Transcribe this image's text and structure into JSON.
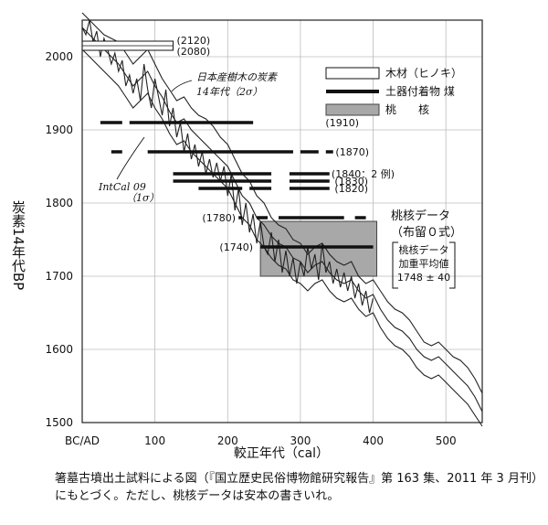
{
  "chart_data": {
    "type": "line",
    "ylabel": "炭素14年代BP",
    "xlabel": "較正年代（cal）",
    "xlim": [
      0,
      550
    ],
    "ylim": [
      1500,
      2050
    ],
    "x_ticks": [
      {
        "value": 0,
        "label": "BC/AD"
      },
      {
        "value": 100,
        "label": "100"
      },
      {
        "value": 200,
        "label": "200"
      },
      {
        "value": 300,
        "label": "300"
      },
      {
        "value": 400,
        "label": "400"
      },
      {
        "value": 500,
        "label": "500"
      }
    ],
    "y_ticks": [
      {
        "value": 1500,
        "label": "1500"
      },
      {
        "value": 1600,
        "label": "1600"
      },
      {
        "value": 1700,
        "label": "1700"
      },
      {
        "value": 1800,
        "label": "1800"
      },
      {
        "value": 1900,
        "label": "1900"
      },
      {
        "value": 2000,
        "label": "2000"
      }
    ],
    "grid": true,
    "calibration_curve": {
      "upper": [
        [
          0,
          2060
        ],
        [
          10,
          2050
        ],
        [
          20,
          2040
        ],
        [
          30,
          2030
        ],
        [
          40,
          2025
        ],
        [
          50,
          2020
        ],
        [
          60,
          2005
        ],
        [
          70,
          1990
        ],
        [
          80,
          2000
        ],
        [
          90,
          2010
        ],
        [
          100,
          1990
        ],
        [
          110,
          1970
        ],
        [
          120,
          1955
        ],
        [
          130,
          1940
        ],
        [
          140,
          1945
        ],
        [
          150,
          1930
        ],
        [
          160,
          1920
        ],
        [
          170,
          1915
        ],
        [
          180,
          1905
        ],
        [
          190,
          1890
        ],
        [
          200,
          1880
        ],
        [
          210,
          1860
        ],
        [
          220,
          1840
        ],
        [
          230,
          1830
        ],
        [
          240,
          1810
        ],
        [
          250,
          1800
        ],
        [
          260,
          1780
        ],
        [
          270,
          1770
        ],
        [
          280,
          1765
        ],
        [
          290,
          1750
        ],
        [
          300,
          1745
        ],
        [
          310,
          1730
        ],
        [
          320,
          1740
        ],
        [
          330,
          1745
        ],
        [
          340,
          1730
        ],
        [
          350,
          1720
        ],
        [
          360,
          1715
        ],
        [
          370,
          1720
        ],
        [
          380,
          1700
        ],
        [
          390,
          1690
        ],
        [
          400,
          1695
        ],
        [
          410,
          1680
        ],
        [
          420,
          1665
        ],
        [
          430,
          1655
        ],
        [
          440,
          1650
        ],
        [
          450,
          1640
        ],
        [
          460,
          1625
        ],
        [
          470,
          1610
        ],
        [
          480,
          1605
        ],
        [
          490,
          1610
        ],
        [
          500,
          1600
        ],
        [
          510,
          1590
        ],
        [
          520,
          1585
        ],
        [
          530,
          1575
        ],
        [
          540,
          1560
        ],
        [
          550,
          1540
        ]
      ],
      "central": [
        [
          0,
          2040
        ],
        [
          10,
          2030
        ],
        [
          20,
          2020
        ],
        [
          30,
          2010
        ],
        [
          40,
          2000
        ],
        [
          50,
          1990
        ],
        [
          60,
          1975
        ],
        [
          70,
          1960
        ],
        [
          80,
          1970
        ],
        [
          90,
          1980
        ],
        [
          100,
          1960
        ],
        [
          110,
          1945
        ],
        [
          120,
          1925
        ],
        [
          130,
          1910
        ],
        [
          140,
          1915
        ],
        [
          150,
          1900
        ],
        [
          160,
          1890
        ],
        [
          170,
          1880
        ],
        [
          180,
          1870
        ],
        [
          190,
          1860
        ],
        [
          200,
          1850
        ],
        [
          210,
          1830
        ],
        [
          220,
          1810
        ],
        [
          230,
          1800
        ],
        [
          240,
          1780
        ],
        [
          250,
          1770
        ],
        [
          260,
          1755
        ],
        [
          270,
          1745
        ],
        [
          280,
          1740
        ],
        [
          290,
          1725
        ],
        [
          300,
          1720
        ],
        [
          310,
          1705
        ],
        [
          320,
          1715
        ],
        [
          330,
          1720
        ],
        [
          340,
          1705
        ],
        [
          350,
          1695
        ],
        [
          360,
          1690
        ],
        [
          370,
          1695
        ],
        [
          380,
          1680
        ],
        [
          390,
          1670
        ],
        [
          400,
          1675
        ],
        [
          410,
          1655
        ],
        [
          420,
          1640
        ],
        [
          430,
          1630
        ],
        [
          440,
          1625
        ],
        [
          450,
          1615
        ],
        [
          460,
          1600
        ],
        [
          470,
          1590
        ],
        [
          480,
          1585
        ],
        [
          490,
          1590
        ],
        [
          500,
          1580
        ],
        [
          510,
          1570
        ],
        [
          520,
          1560
        ],
        [
          530,
          1550
        ],
        [
          540,
          1535
        ],
        [
          550,
          1515
        ]
      ],
      "lower": [
        [
          0,
          2010
        ],
        [
          10,
          2000
        ],
        [
          20,
          1990
        ],
        [
          30,
          1980
        ],
        [
          40,
          1970
        ],
        [
          50,
          1960
        ],
        [
          60,
          1945
        ],
        [
          70,
          1930
        ],
        [
          80,
          1940
        ],
        [
          90,
          1950
        ],
        [
          100,
          1930
        ],
        [
          110,
          1915
        ],
        [
          120,
          1895
        ],
        [
          130,
          1880
        ],
        [
          140,
          1885
        ],
        [
          150,
          1870
        ],
        [
          160,
          1860
        ],
        [
          170,
          1850
        ],
        [
          180,
          1840
        ],
        [
          190,
          1830
        ],
        [
          200,
          1820
        ],
        [
          210,
          1800
        ],
        [
          220,
          1780
        ],
        [
          230,
          1770
        ],
        [
          240,
          1750
        ],
        [
          250,
          1740
        ],
        [
          260,
          1725
        ],
        [
          270,
          1715
        ],
        [
          280,
          1710
        ],
        [
          290,
          1695
        ],
        [
          300,
          1690
        ],
        [
          310,
          1680
        ],
        [
          320,
          1690
        ],
        [
          330,
          1695
        ],
        [
          340,
          1680
        ],
        [
          350,
          1670
        ],
        [
          360,
          1665
        ],
        [
          370,
          1670
        ],
        [
          380,
          1655
        ],
        [
          390,
          1645
        ],
        [
          400,
          1650
        ],
        [
          410,
          1630
        ],
        [
          420,
          1615
        ],
        [
          430,
          1605
        ],
        [
          440,
          1600
        ],
        [
          450,
          1590
        ],
        [
          460,
          1575
        ],
        [
          470,
          1565
        ],
        [
          480,
          1560
        ],
        [
          490,
          1565
        ],
        [
          500,
          1555
        ],
        [
          510,
          1545
        ],
        [
          520,
          1535
        ],
        [
          530,
          1525
        ],
        [
          540,
          1510
        ],
        [
          550,
          1495
        ]
      ]
    },
    "jagged_curve": [
      [
        0,
        2040
      ],
      [
        5,
        2030
      ],
      [
        10,
        2050
      ],
      [
        15,
        2020
      ],
      [
        20,
        2035
      ],
      [
        25,
        2000
      ],
      [
        30,
        2025
      ],
      [
        35,
        2010
      ],
      [
        40,
        1990
      ],
      [
        45,
        2005
      ],
      [
        50,
        1980
      ],
      [
        55,
        1995
      ],
      [
        60,
        1960
      ],
      [
        65,
        1975
      ],
      [
        70,
        1950
      ],
      [
        75,
        1970
      ],
      [
        80,
        1940
      ],
      [
        85,
        1990
      ],
      [
        90,
        1955
      ],
      [
        95,
        1930
      ],
      [
        100,
        1970
      ],
      [
        105,
        1945
      ],
      [
        110,
        1920
      ],
      [
        115,
        1955
      ],
      [
        120,
        1905
      ],
      [
        125,
        1930
      ],
      [
        130,
        1890
      ],
      [
        135,
        1910
      ],
      [
        140,
        1870
      ],
      [
        145,
        1895
      ],
      [
        150,
        1860
      ],
      [
        155,
        1880
      ],
      [
        160,
        1850
      ],
      [
        165,
        1870
      ],
      [
        170,
        1840
      ],
      [
        175,
        1860
      ],
      [
        180,
        1835
      ],
      [
        185,
        1855
      ],
      [
        190,
        1830
      ],
      [
        195,
        1850
      ],
      [
        200,
        1810
      ],
      [
        205,
        1840
      ],
      [
        210,
        1790
      ],
      [
        215,
        1820
      ],
      [
        220,
        1770
      ],
      [
        225,
        1800
      ],
      [
        230,
        1760
      ],
      [
        235,
        1785
      ],
      [
        240,
        1745
      ],
      [
        245,
        1775
      ],
      [
        250,
        1740
      ],
      [
        255,
        1730
      ],
      [
        260,
        1760
      ],
      [
        265,
        1720
      ],
      [
        270,
        1750
      ],
      [
        275,
        1705
      ],
      [
        280,
        1735
      ],
      [
        285,
        1700
      ],
      [
        290,
        1725
      ],
      [
        295,
        1690
      ],
      [
        300,
        1720
      ],
      [
        305,
        1700
      ],
      [
        310,
        1740
      ],
      [
        315,
        1710
      ],
      [
        320,
        1730
      ],
      [
        325,
        1695
      ],
      [
        330,
        1745
      ],
      [
        335,
        1705
      ],
      [
        340,
        1720
      ],
      [
        345,
        1690
      ],
      [
        350,
        1710
      ],
      [
        355,
        1685
      ],
      [
        360,
        1705
      ],
      [
        365,
        1680
      ],
      [
        370,
        1700
      ],
      [
        375,
        1670
      ],
      [
        380,
        1690
      ],
      [
        385,
        1660
      ],
      [
        390,
        1680
      ],
      [
        395,
        1650
      ],
      [
        400,
        1670
      ]
    ],
    "charcoal_brackets": [
      {
        "value": 2120,
        "from": 0,
        "to": 125,
        "label": "(2120)"
      },
      {
        "value": 2080,
        "from": 0,
        "to": 125,
        "label": "(2080)"
      }
    ],
    "soot_lines": [
      {
        "value": 1910,
        "label": "(1910)",
        "segments": [
          [
            25,
            55
          ],
          [
            65,
            235
          ]
        ]
      },
      {
        "value": 1870,
        "label": "(1870)",
        "segments": [
          [
            40,
            55
          ],
          [
            90,
            290
          ],
          [
            300,
            325
          ],
          [
            335,
            345
          ]
        ]
      },
      {
        "value": 1840,
        "label": "(1840：2 例)",
        "segments": [
          [
            125,
            260
          ],
          [
            285,
            340
          ]
        ]
      },
      {
        "value": 1830,
        "label": "(1830)",
        "segments": [
          [
            125,
            260
          ],
          [
            285,
            340
          ]
        ]
      },
      {
        "value": 1820,
        "label": "(1820)",
        "segments": [
          [
            160,
            220
          ],
          [
            230,
            260
          ],
          [
            285,
            340
          ]
        ]
      },
      {
        "value": 1780,
        "label": "(1780)",
        "segments": [
          [
            215,
            220
          ],
          [
            240,
            255
          ],
          [
            270,
            360
          ],
          [
            375,
            390
          ]
        ]
      },
      {
        "value": 1740,
        "label": "(1740)",
        "segments": [
          [
            245,
            400
          ]
        ]
      }
    ],
    "peach_box": {
      "x0": 245,
      "x1": 405,
      "y0": 1700,
      "y1": 1775
    },
    "legend": [
      {
        "label": "木材（ヒノキ）",
        "swatch": "open-box"
      },
      {
        "label": "土器付着物  煤",
        "swatch": "thick-line"
      },
      {
        "label": "桃　　核",
        "swatch": "gray-box"
      }
    ],
    "annotations": {
      "handwritten_tree": [
        "日本産樹木の炭素",
        "14年代（2σ）"
      ],
      "handwritten_intcal": [
        "IntCal 09",
        "（1σ）"
      ],
      "peach_data_title": [
        "桃核データ",
        "（布留０式）"
      ],
      "peach_weighted": [
        "桃核データ",
        "加重平均値",
        "1748 ± 40"
      ]
    },
    "colors": {
      "box_fill": "#a8a8a8",
      "curve": "#222222",
      "line": "#111111"
    }
  },
  "caption": "箸墓古墳出土試料による図（『国立歴史民俗博物館研究報告』第 163 集、2011 年 3 月刊）にもとづく。ただし、桃核データは安本の書きいれ。"
}
